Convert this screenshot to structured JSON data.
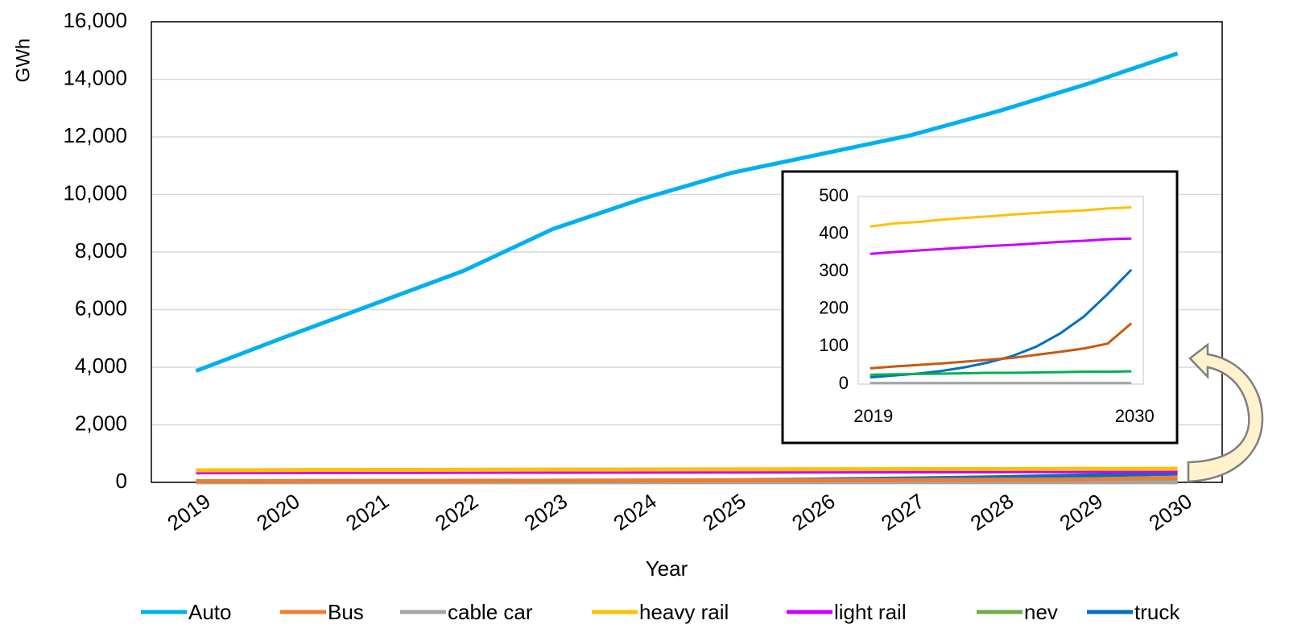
{
  "chart_data": [
    {
      "type": "line",
      "xlabel": "Year",
      "ylabel": "GWh",
      "categories": [
        "2019",
        "2020",
        "2021",
        "2022",
        "2023",
        "2024",
        "2025",
        "2026",
        "2027",
        "2028",
        "2029",
        "2030"
      ],
      "ylim": [
        0,
        16000
      ],
      "yticks": [
        0,
        {
          "value": 2000,
          "label": "2,000"
        },
        {
          "value": 4000,
          "label": "4,000"
        },
        {
          "value": 6000,
          "label": "6,000"
        },
        {
          "value": 8000,
          "label": "8,000"
        },
        {
          "value": 10000,
          "label": "10,000"
        },
        {
          "value": 12000,
          "label": "12,000"
        },
        {
          "value": 14000,
          "label": "14,000"
        },
        {
          "value": 16000,
          "label": "16,000"
        }
      ],
      "grid": true,
      "legend": "bottom",
      "series": [
        {
          "name": "Auto",
          "color": "#00b0f0",
          "values": [
            3870,
            5050,
            6200,
            7350,
            8800,
            9850,
            10750,
            11400,
            12050,
            12900,
            13850,
            14900
          ]
        },
        {
          "name": "Bus",
          "color": "#ed7d31",
          "values": [
            42,
            47,
            51,
            55,
            60,
            65,
            70,
            78,
            86,
            95,
            108,
            162
          ]
        },
        {
          "name": "cable car",
          "color": "#a5a5a5",
          "values": [
            3,
            3,
            3,
            3,
            3,
            3,
            3,
            3,
            3,
            3,
            3,
            3
          ]
        },
        {
          "name": "heavy rail",
          "color": "#ffc000",
          "values": [
            420,
            428,
            432,
            438,
            443,
            447,
            452,
            456,
            460,
            463,
            468,
            471
          ]
        },
        {
          "name": "light rail",
          "color": "#cc00ff",
          "values": [
            347,
            352,
            356,
            360,
            364,
            368,
            371,
            375,
            379,
            382,
            386,
            388
          ]
        },
        {
          "name": "nev",
          "color": "#70ad47",
          "values": [
            25,
            26,
            27,
            28,
            29,
            30,
            30,
            31,
            32,
            33,
            33,
            34
          ]
        },
        {
          "name": "truck",
          "color": "#0070c0",
          "values": [
            18,
            23,
            28,
            35,
            45,
            58,
            75,
            100,
            135,
            180,
            240,
            305
          ]
        }
      ]
    },
    {
      "type": "line",
      "categories": [
        "2019",
        null,
        null,
        null,
        null,
        null,
        null,
        null,
        null,
        null,
        null,
        "2030"
      ],
      "ylim": [
        0,
        500
      ],
      "yticks": [
        0,
        100,
        200,
        300,
        400,
        500
      ],
      "grid": false,
      "series": [
        {
          "color": "#c55a11",
          "values": [
            42,
            47,
            51,
            55,
            60,
            65,
            70,
            78,
            86,
            95,
            108,
            162
          ]
        },
        {
          "color": "#a5a5a5",
          "values": [
            3,
            3,
            3,
            3,
            3,
            3,
            3,
            3,
            3,
            3,
            3,
            3
          ]
        },
        {
          "color": "#ffc000",
          "values": [
            420,
            428,
            432,
            438,
            443,
            447,
            452,
            456,
            460,
            463,
            468,
            471
          ]
        },
        {
          "color": "#cc00ff",
          "values": [
            347,
            352,
            356,
            360,
            364,
            368,
            371,
            375,
            379,
            382,
            386,
            388
          ]
        },
        {
          "color": "#00b050",
          "values": [
            25,
            26,
            27,
            28,
            29,
            30,
            30,
            31,
            32,
            33,
            33,
            34
          ]
        },
        {
          "color": "#0070c0",
          "values": [
            18,
            23,
            28,
            35,
            45,
            58,
            75,
            100,
            135,
            180,
            240,
            305
          ]
        }
      ]
    }
  ]
}
